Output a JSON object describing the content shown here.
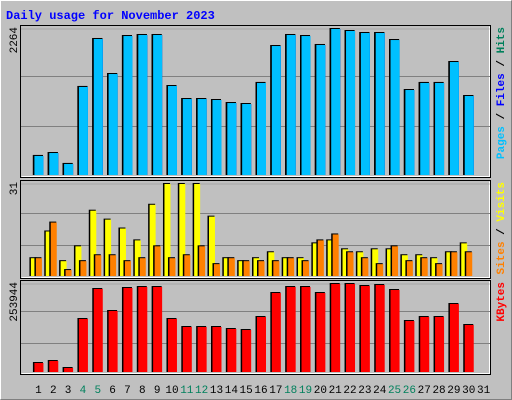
{
  "title": "Daily usage for November 2023",
  "legend_separator": "/",
  "chart_data": [
    {
      "type": "bar",
      "categories": [
        "1",
        "2",
        "3",
        "4",
        "5",
        "6",
        "7",
        "8",
        "9",
        "10",
        "11",
        "12",
        "13",
        "14",
        "15",
        "16",
        "17",
        "18",
        "19",
        "20",
        "21",
        "22",
        "23",
        "24",
        "25",
        "26",
        "27",
        "28",
        "29",
        "30",
        "31"
      ],
      "ylim": [
        0,
        2264
      ],
      "yticks": [
        2264
      ],
      "grid": true,
      "series": [
        {
          "name": "Hits",
          "color": "#00805c",
          "values": [
            295,
            341,
            171,
            1365,
            2109,
            1566,
            2155,
            2171,
            2171,
            1380,
            1178,
            1178,
            1163,
            1116,
            1101,
            1427,
            2000,
            2171,
            2155,
            2016,
            2264,
            2233,
            2202,
            2202,
            2093,
            1318,
            1427,
            1427,
            1752,
            1225,
            null
          ]
        },
        {
          "name": "Files",
          "color": "#0000ff",
          "values": [
            295,
            341,
            171,
            1365,
            2109,
            1566,
            2155,
            2171,
            2171,
            1380,
            1178,
            1178,
            1163,
            1116,
            1101,
            1427,
            2000,
            2171,
            2155,
            2016,
            2264,
            2233,
            2202,
            2202,
            2093,
            1318,
            1427,
            1427,
            1752,
            1225,
            null
          ]
        },
        {
          "name": "Pages",
          "color": "#00c0ff",
          "values": [
            295,
            341,
            171,
            1365,
            2109,
            1566,
            2155,
            2171,
            2171,
            1380,
            1178,
            1178,
            1163,
            1116,
            1101,
            1427,
            2000,
            2171,
            2155,
            2016,
            2264,
            2233,
            2202,
            2202,
            2093,
            1318,
            1427,
            1427,
            1752,
            1225,
            null
          ]
        }
      ]
    },
    {
      "type": "bar",
      "categories": [
        "1",
        "2",
        "3",
        "4",
        "5",
        "6",
        "7",
        "8",
        "9",
        "10",
        "11",
        "12",
        "13",
        "14",
        "15",
        "16",
        "17",
        "18",
        "19",
        "20",
        "21",
        "22",
        "23",
        "24",
        "25",
        "26",
        "27",
        "28",
        "29",
        "30",
        "31"
      ],
      "ylim": [
        0,
        31
      ],
      "yticks": [
        31
      ],
      "grid": true,
      "series": [
        {
          "name": "Visits",
          "color": "#ffff00",
          "values": [
            6,
            15,
            5,
            10,
            22,
            19,
            16,
            12,
            24,
            31,
            31,
            31,
            20,
            6,
            5,
            6,
            8,
            6,
            6,
            11,
            12,
            9,
            8,
            9,
            9,
            7,
            7,
            6,
            8,
            11,
            null
          ]
        },
        {
          "name": "Sites",
          "color": "#ff8000",
          "values": [
            6,
            18,
            2,
            5,
            7,
            7,
            5,
            6,
            10,
            6,
            7,
            10,
            4,
            6,
            5,
            5,
            5,
            6,
            5,
            12,
            14,
            8,
            6,
            4,
            10,
            5,
            6,
            4,
            8,
            8,
            null
          ]
        }
      ]
    },
    {
      "type": "bar",
      "categories": [
        "1",
        "2",
        "3",
        "4",
        "5",
        "6",
        "7",
        "8",
        "9",
        "10",
        "11",
        "12",
        "13",
        "14",
        "15",
        "16",
        "17",
        "18",
        "19",
        "20",
        "21",
        "22",
        "23",
        "24",
        "25",
        "26",
        "27",
        "28",
        "29",
        "30",
        "31"
      ],
      "category_colors": [
        "#000000",
        "#000000",
        "#000000",
        "#00805c",
        "#00805c",
        "#000000",
        "#000000",
        "#000000",
        "#000000",
        "#000000",
        "#00805c",
        "#00805c",
        "#000000",
        "#000000",
        "#000000",
        "#000000",
        "#000000",
        "#00805c",
        "#00805c",
        "#000000",
        "#000000",
        "#000000",
        "#000000",
        "#000000",
        "#00805c",
        "#00805c",
        "#000000",
        "#000000",
        "#000000",
        "#000000",
        "#000000"
      ],
      "ylim": [
        0,
        253944
      ],
      "yticks": [
        253944
      ],
      "grid": true,
      "series": [
        {
          "name": "KBytes",
          "color": "#ff0000",
          "values": [
            25970,
            31743,
            11543,
            152949,
            239520,
            176035,
            242406,
            245292,
            245292,
            152949,
            129862,
            129862,
            129862,
            124090,
            121204,
            158720,
            227977,
            245292,
            245292,
            227977,
            253944,
            253944,
            248173,
            251058,
            236634,
            147177,
            158720,
            158720,
            196236,
            135633,
            null
          ]
        }
      ]
    }
  ]
}
